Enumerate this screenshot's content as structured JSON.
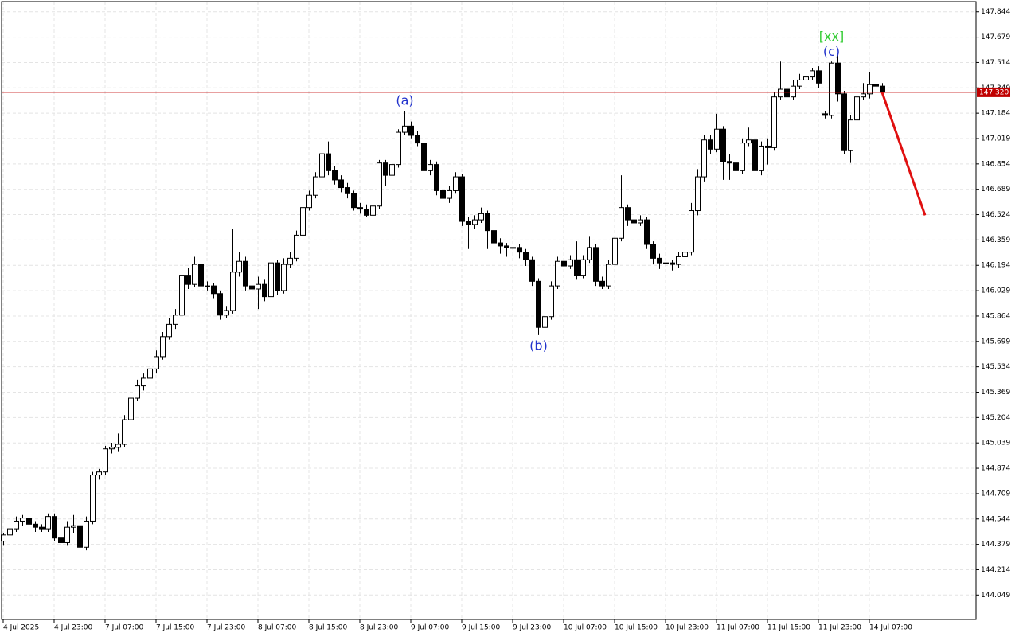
{
  "chart_data": {
    "type": "candlestick",
    "xlim": [
      -0.25,
      152.75
    ],
    "ylim": [
      143.89,
      147.91
    ],
    "yticks": [
      147.844,
      147.679,
      147.514,
      147.349,
      147.184,
      147.019,
      146.854,
      146.689,
      146.524,
      146.359,
      146.194,
      146.029,
      145.864,
      145.699,
      145.534,
      145.369,
      145.204,
      145.039,
      144.874,
      144.709,
      144.544,
      144.379,
      144.214,
      144.049
    ],
    "xticks": [
      {
        "value": 0,
        "label": "4 Jul 2025"
      },
      {
        "value": 8,
        "label": "4 Jul 23:00"
      },
      {
        "value": 16,
        "label": "7 Jul 07:00"
      },
      {
        "value": 24,
        "label": "7 Jul 15:00"
      },
      {
        "value": 32,
        "label": "7 Jul 23:00"
      },
      {
        "value": 40,
        "label": "8 Jul 07:00"
      },
      {
        "value": 48,
        "label": "8 Jul 15:00"
      },
      {
        "value": 56,
        "label": "8 Jul 23:00"
      },
      {
        "value": 64,
        "label": "9 Jul 07:00"
      },
      {
        "value": 72,
        "label": "9 Jul 15:00"
      },
      {
        "value": 80,
        "label": "9 Jul 23:00"
      },
      {
        "value": 88,
        "label": "10 Jul 07:00"
      },
      {
        "value": 96,
        "label": "10 Jul 15:00"
      },
      {
        "value": 104,
        "label": "10 Jul 23:00"
      },
      {
        "value": 112,
        "label": "11 Jul 07:00"
      },
      {
        "value": 120,
        "label": "11 Jul 15:00"
      },
      {
        "value": 128,
        "label": "11 Jul 23:00"
      },
      {
        "value": 136,
        "label": "14 Jul 07:00"
      }
    ],
    "grid": true,
    "up_color": "#ffffff",
    "down_color": "#000000",
    "candles": [
      [
        144.4,
        144.45,
        144.37,
        144.44
      ],
      [
        144.44,
        144.52,
        144.41,
        144.48
      ],
      [
        144.48,
        144.56,
        144.46,
        144.53
      ],
      [
        144.53,
        144.57,
        144.5,
        144.55
      ],
      [
        144.55,
        144.56,
        144.49,
        144.51
      ],
      [
        144.51,
        144.53,
        144.46,
        144.49
      ],
      [
        144.49,
        144.51,
        144.46,
        144.48
      ],
      [
        144.48,
        144.58,
        144.46,
        144.56
      ],
      [
        144.56,
        144.58,
        144.4,
        144.42
      ],
      [
        144.42,
        144.45,
        144.32,
        144.39
      ],
      [
        144.39,
        144.53,
        144.37,
        144.49
      ],
      [
        144.49,
        144.57,
        144.45,
        144.5
      ],
      [
        144.5,
        144.52,
        144.24,
        144.36
      ],
      [
        144.36,
        144.56,
        144.34,
        144.53
      ],
      [
        144.53,
        144.85,
        144.51,
        144.83
      ],
      [
        144.83,
        144.87,
        144.8,
        144.85
      ],
      [
        144.85,
        145.02,
        144.83,
        145.0
      ],
      [
        145.0,
        145.04,
        144.97,
        145.01
      ],
      [
        145.01,
        145.1,
        144.98,
        145.03
      ],
      [
        145.03,
        145.22,
        145.01,
        145.19
      ],
      [
        145.19,
        145.37,
        145.17,
        145.33
      ],
      [
        145.33,
        145.45,
        145.31,
        145.41
      ],
      [
        145.41,
        145.49,
        145.38,
        145.46
      ],
      [
        145.46,
        145.55,
        145.43,
        145.52
      ],
      [
        145.52,
        145.64,
        145.49,
        145.6
      ],
      [
        145.6,
        145.76,
        145.58,
        145.73
      ],
      [
        145.73,
        145.85,
        145.71,
        145.81
      ],
      [
        145.81,
        145.91,
        145.78,
        145.87
      ],
      [
        145.87,
        146.16,
        145.85,
        146.13
      ],
      [
        146.13,
        146.18,
        146.04,
        146.07
      ],
      [
        146.07,
        146.25,
        146.05,
        146.2
      ],
      [
        146.2,
        146.24,
        146.03,
        146.06
      ],
      [
        146.06,
        146.09,
        146.03,
        146.06
      ],
      [
        146.06,
        146.08,
        145.98,
        146.01
      ],
      [
        146.01,
        146.03,
        145.84,
        145.87
      ],
      [
        145.87,
        145.93,
        145.85,
        145.9
      ],
      [
        145.9,
        146.43,
        145.88,
        146.15
      ],
      [
        146.15,
        146.28,
        146.12,
        146.22
      ],
      [
        146.22,
        146.25,
        146.03,
        146.06
      ],
      [
        146.06,
        146.1,
        146.01,
        146.04
      ],
      [
        146.04,
        146.12,
        145.91,
        146.07
      ],
      [
        146.07,
        146.1,
        145.96,
        145.99
      ],
      [
        145.99,
        146.25,
        145.97,
        146.21
      ],
      [
        146.21,
        146.23,
        146.0,
        146.03
      ],
      [
        146.03,
        146.24,
        146.01,
        146.2
      ],
      [
        146.2,
        146.28,
        146.18,
        146.24
      ],
      [
        146.24,
        146.42,
        146.22,
        146.39
      ],
      [
        146.39,
        146.6,
        146.37,
        146.57
      ],
      [
        146.57,
        146.68,
        146.55,
        146.65
      ],
      [
        146.65,
        146.8,
        146.63,
        146.77
      ],
      [
        146.77,
        146.97,
        146.75,
        146.92
      ],
      [
        146.92,
        147.0,
        146.78,
        146.81
      ],
      [
        146.81,
        146.84,
        146.72,
        146.75
      ],
      [
        146.75,
        146.78,
        146.67,
        146.7
      ],
      [
        146.7,
        146.73,
        146.63,
        146.66
      ],
      [
        146.66,
        146.68,
        146.55,
        146.57
      ],
      [
        146.57,
        146.6,
        146.53,
        146.56
      ],
      [
        146.56,
        146.59,
        146.51,
        146.52
      ],
      [
        146.52,
        146.61,
        146.5,
        146.58
      ],
      [
        146.58,
        146.88,
        146.56,
        146.86
      ],
      [
        146.86,
        146.88,
        146.71,
        146.78
      ],
      [
        146.78,
        146.88,
        146.7,
        146.85
      ],
      [
        146.85,
        147.08,
        146.83,
        147.06
      ],
      [
        147.06,
        147.2,
        147.04,
        147.1
      ],
      [
        147.1,
        147.13,
        147.02,
        147.04
      ],
      [
        147.04,
        147.07,
        146.97,
        146.99
      ],
      [
        146.99,
        147.01,
        146.78,
        146.81
      ],
      [
        146.81,
        146.88,
        146.78,
        146.85
      ],
      [
        146.85,
        146.87,
        146.65,
        146.68
      ],
      [
        146.68,
        146.71,
        146.55,
        146.63
      ],
      [
        146.63,
        146.71,
        146.6,
        146.68
      ],
      [
        146.68,
        146.8,
        146.66,
        146.77
      ],
      [
        146.77,
        146.79,
        146.45,
        146.48
      ],
      [
        146.48,
        146.51,
        146.3,
        146.46
      ],
      [
        146.46,
        146.52,
        146.43,
        146.49
      ],
      [
        146.49,
        146.57,
        146.47,
        146.53
      ],
      [
        146.53,
        146.55,
        146.3,
        146.42
      ],
      [
        146.42,
        146.45,
        146.3,
        146.34
      ],
      [
        146.34,
        146.37,
        146.27,
        146.32
      ],
      [
        146.32,
        146.34,
        146.25,
        146.31
      ],
      [
        146.31,
        146.34,
        146.28,
        146.31
      ],
      [
        146.31,
        146.33,
        146.24,
        146.28
      ],
      [
        146.28,
        146.3,
        146.19,
        146.23
      ],
      [
        146.23,
        146.25,
        146.06,
        146.09
      ],
      [
        146.09,
        146.11,
        145.74,
        145.79
      ],
      [
        145.79,
        145.89,
        145.76,
        145.86
      ],
      [
        145.86,
        146.09,
        145.84,
        146.06
      ],
      [
        146.06,
        146.25,
        146.04,
        146.22
      ],
      [
        146.22,
        146.4,
        146.16,
        146.19
      ],
      [
        146.19,
        146.26,
        146.17,
        146.23
      ],
      [
        146.23,
        146.35,
        146.1,
        146.13
      ],
      [
        146.13,
        146.26,
        146.11,
        146.23
      ],
      [
        146.23,
        146.38,
        146.21,
        146.31
      ],
      [
        146.31,
        146.33,
        146.06,
        146.09
      ],
      [
        146.09,
        146.12,
        146.04,
        146.06
      ],
      [
        146.06,
        146.23,
        146.04,
        146.2
      ],
      [
        146.2,
        146.4,
        146.18,
        146.37
      ],
      [
        146.37,
        146.78,
        146.35,
        146.57
      ],
      [
        146.57,
        146.59,
        146.45,
        146.49
      ],
      [
        146.49,
        146.52,
        146.4,
        146.47
      ],
      [
        146.47,
        146.52,
        146.45,
        146.49
      ],
      [
        146.49,
        146.51,
        146.3,
        146.33
      ],
      [
        146.33,
        146.35,
        146.2,
        146.24
      ],
      [
        146.24,
        146.27,
        146.17,
        146.21
      ],
      [
        146.21,
        146.24,
        146.16,
        146.21
      ],
      [
        146.21,
        146.23,
        146.16,
        146.2
      ],
      [
        146.2,
        146.28,
        146.18,
        146.25
      ],
      [
        146.25,
        146.31,
        146.14,
        146.28
      ],
      [
        146.28,
        146.6,
        146.26,
        146.55
      ],
      [
        146.55,
        146.82,
        146.52,
        146.77
      ],
      [
        146.77,
        147.04,
        146.74,
        147.01
      ],
      [
        147.01,
        147.04,
        146.92,
        146.95
      ],
      [
        146.95,
        147.18,
        146.93,
        147.08
      ],
      [
        147.08,
        147.1,
        146.75,
        146.87
      ],
      [
        146.87,
        146.92,
        146.75,
        146.86
      ],
      [
        146.86,
        146.88,
        146.73,
        146.81
      ],
      [
        146.81,
        147.02,
        146.79,
        146.99
      ],
      [
        146.99,
        147.09,
        146.97,
        147.01
      ],
      [
        147.01,
        147.03,
        146.77,
        146.81
      ],
      [
        146.81,
        147.0,
        146.78,
        146.97
      ],
      [
        146.97,
        147.02,
        146.85,
        146.96
      ],
      [
        146.96,
        147.32,
        146.94,
        147.29
      ],
      [
        147.29,
        147.52,
        147.27,
        147.34
      ],
      [
        147.34,
        147.37,
        147.26,
        147.29
      ],
      [
        147.29,
        147.4,
        147.27,
        147.36
      ],
      [
        147.36,
        147.44,
        147.34,
        147.4
      ],
      [
        147.4,
        147.46,
        147.37,
        147.42
      ],
      [
        147.42,
        147.48,
        147.4,
        147.46
      ],
      [
        147.46,
        147.49,
        147.35,
        147.38
      ],
      [
        147.18,
        147.2,
        147.15,
        147.17
      ],
      [
        147.17,
        147.52,
        147.15,
        147.51
      ],
      [
        147.51,
        147.57,
        147.26,
        147.31
      ],
      [
        147.31,
        147.33,
        146.92,
        146.94
      ],
      [
        146.94,
        147.17,
        146.86,
        147.14
      ],
      [
        147.14,
        147.31,
        147.1,
        147.29
      ],
      [
        147.29,
        147.38,
        147.27,
        147.31
      ],
      [
        147.31,
        147.45,
        147.28,
        147.37
      ],
      [
        147.37,
        147.47,
        147.33,
        147.36
      ],
      [
        147.36,
        147.38,
        147.3,
        147.32
      ]
    ],
    "last_price": {
      "value": 147.32,
      "label": "147.320",
      "color": "#c00000"
    },
    "forecast": {
      "x": [
        138,
        144.75
      ],
      "y": [
        147.32,
        146.52
      ],
      "color": "#e01010"
    },
    "annotations": [
      {
        "text": "(a)",
        "candle": 63,
        "position": "above",
        "color": "#2233cc"
      },
      {
        "text": "(b)",
        "candle": 84,
        "position": "below",
        "color": "#2233cc"
      },
      {
        "text": "(c)",
        "candle": 130,
        "position": "above",
        "color": "#2233cc"
      },
      {
        "text": "[xx]",
        "candle": 130,
        "position": "above",
        "color": "#33cc33"
      }
    ]
  }
}
